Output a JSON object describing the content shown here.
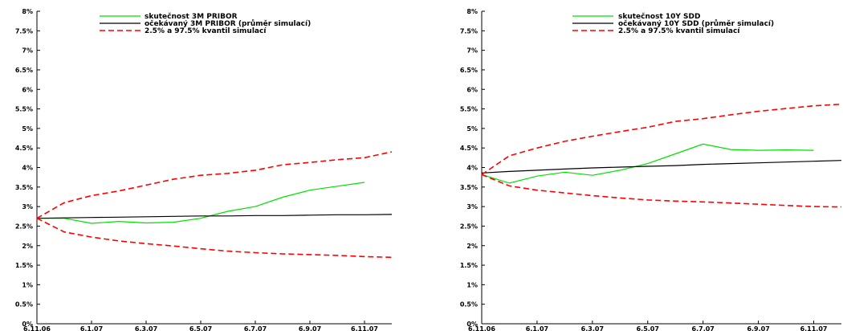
{
  "chart_data": [
    {
      "type": "line",
      "categories": [
        "6.11.06",
        "6.12.06",
        "6.1.07",
        "6.2.07",
        "6.3.07",
        "6.4.07",
        "6.5.07",
        "6.6.07",
        "6.7.07",
        "6.8.07",
        "6.9.07",
        "6.10.07",
        "6.11.07",
        "6.12.07"
      ],
      "x_tick_labels": [
        "6.11.06",
        "6.1.07",
        "6.3.07",
        "6.5.07",
        "6.7.07",
        "6.9.07",
        "6.11.07"
      ],
      "y_tick_labels": [
        "0%",
        "0.5%",
        "1%",
        "1.5%",
        "2%",
        "2.5%",
        "3%",
        "3.5%",
        "4%",
        "4.5%",
        "5%",
        "5.5%",
        "6%",
        "6.5%",
        "7%",
        "7.5%",
        "8%"
      ],
      "ylim": [
        0,
        8
      ],
      "grid": false,
      "legend_position": "top-center",
      "series": [
        {
          "name": "skutečnost 3M PRIBOR",
          "color": "#00e000",
          "style": "solid",
          "values": [
            2.7,
            2.7,
            2.57,
            2.62,
            2.58,
            2.6,
            2.7,
            2.88,
            3.0,
            3.24,
            3.42,
            3.52,
            3.62,
            null
          ]
        },
        {
          "name": "očekávaný 3M PRIBOR (průměr simulací)",
          "color": "#000000",
          "style": "solid",
          "values": [
            2.7,
            2.71,
            2.72,
            2.73,
            2.74,
            2.75,
            2.76,
            2.76,
            2.77,
            2.77,
            2.78,
            2.79,
            2.79,
            2.8
          ]
        },
        {
          "name": "2.5% a 97.5% kvantil simulací",
          "color": "#ff0000",
          "style": "dashed",
          "values": [
            2.7,
            3.1,
            3.28,
            3.4,
            3.55,
            3.7,
            3.8,
            3.85,
            3.93,
            4.07,
            4.13,
            4.2,
            4.25,
            4.4
          ]
        },
        {
          "name": "",
          "color": "#ff0000",
          "style": "dashed",
          "values": [
            2.7,
            2.35,
            2.22,
            2.12,
            2.05,
            1.99,
            1.92,
            1.86,
            1.82,
            1.79,
            1.77,
            1.75,
            1.72,
            1.7
          ]
        }
      ]
    },
    {
      "type": "line",
      "categories": [
        "6.11.06",
        "6.12.06",
        "6.1.07",
        "6.2.07",
        "6.3.07",
        "6.4.07",
        "6.5.07",
        "6.6.07",
        "6.7.07",
        "6.8.07",
        "6.9.07",
        "6.10.07",
        "6.11.07",
        "6.12.07"
      ],
      "x_tick_labels": [
        "6.11.06",
        "6.1.07",
        "6.3.07",
        "6.5.07",
        "6.7.07",
        "6.9.07",
        "6.11.07"
      ],
      "y_tick_labels": [
        "0%",
        "0.5%",
        "1%",
        "1.5%",
        "2%",
        "2.5%",
        "3%",
        "3.5%",
        "4%",
        "4.5%",
        "5%",
        "5.5%",
        "6%",
        "6.5%",
        "7%",
        "7.5%",
        "8%"
      ],
      "ylim": [
        0,
        8
      ],
      "grid": false,
      "legend_position": "top-center",
      "series": [
        {
          "name": "skutečnost 10Y SDD",
          "color": "#00e000",
          "style": "solid",
          "values": [
            3.82,
            3.6,
            3.78,
            3.88,
            3.8,
            3.93,
            4.1,
            4.35,
            4.6,
            4.46,
            4.44,
            4.45,
            4.44,
            null
          ]
        },
        {
          "name": "očekávaný 10Y SDD (průměr simulací)",
          "color": "#000000",
          "style": "solid",
          "values": [
            3.86,
            3.9,
            3.93,
            3.96,
            3.99,
            4.01,
            4.03,
            4.05,
            4.08,
            4.1,
            4.12,
            4.14,
            4.16,
            4.18
          ]
        },
        {
          "name": "2.5% a 97.5% kvantil simulací",
          "color": "#ff0000",
          "style": "dashed",
          "values": [
            3.82,
            4.3,
            4.5,
            4.67,
            4.8,
            4.92,
            5.03,
            5.18,
            5.25,
            5.35,
            5.44,
            5.51,
            5.58,
            5.62
          ]
        },
        {
          "name": "",
          "color": "#ff0000",
          "style": "dashed",
          "values": [
            3.82,
            3.53,
            3.42,
            3.35,
            3.28,
            3.22,
            3.17,
            3.14,
            3.12,
            3.09,
            3.06,
            3.03,
            3.0,
            2.99
          ]
        }
      ]
    }
  ]
}
